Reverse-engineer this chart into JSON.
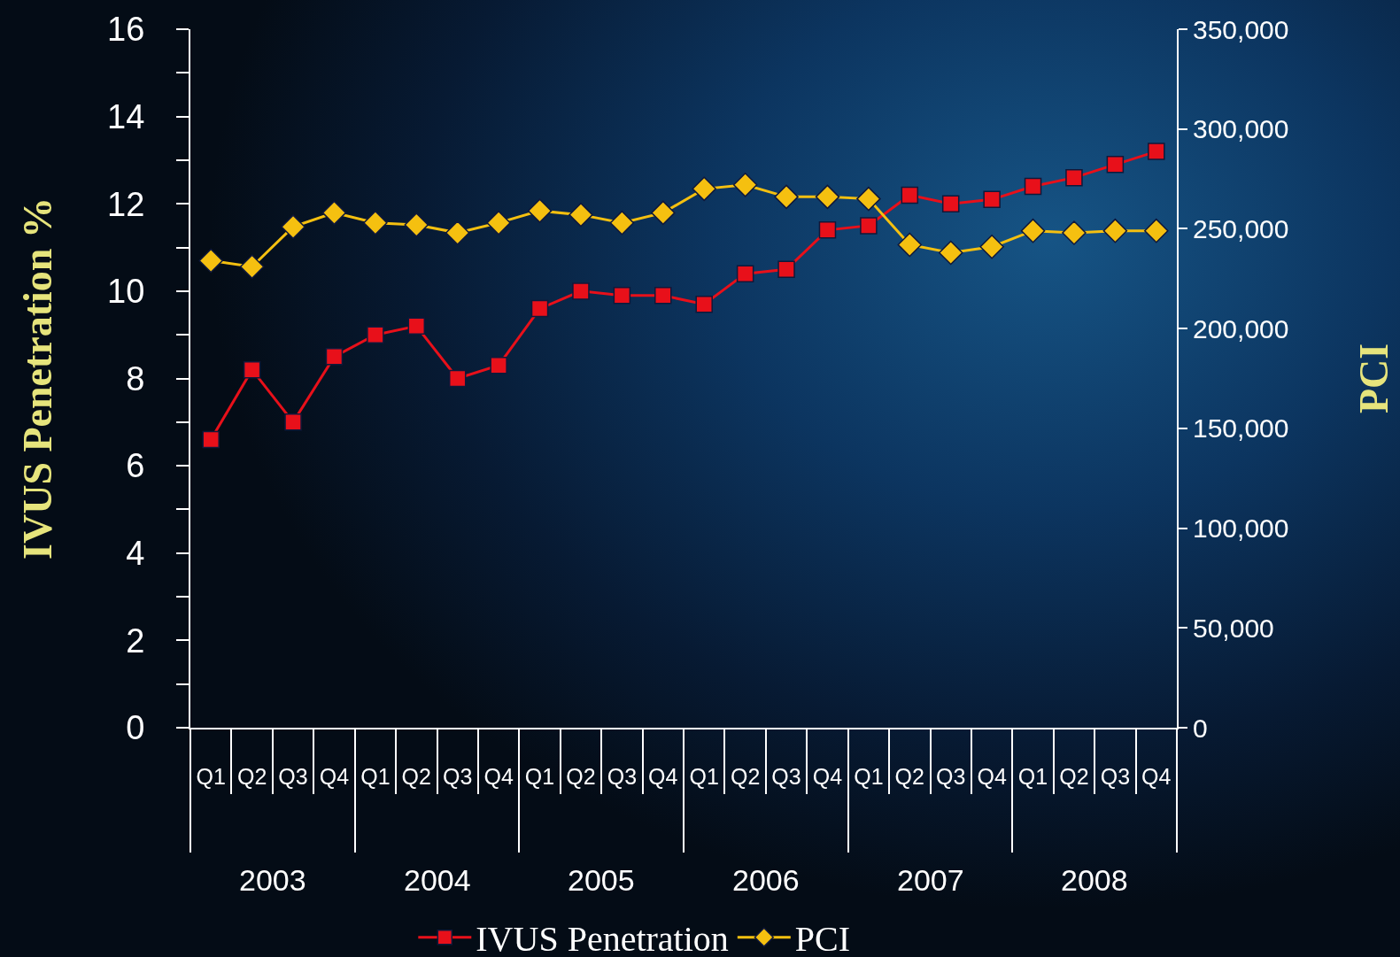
{
  "chart_data": {
    "type": "line",
    "ylabel": "IVUS Penetration %",
    "y2label": "PCI",
    "categories": [
      "Q1",
      "Q2",
      "Q3",
      "Q4",
      "Q1",
      "Q2",
      "Q3",
      "Q4",
      "Q1",
      "Q2",
      "Q3",
      "Q4",
      "Q1",
      "Q2",
      "Q3",
      "Q4",
      "Q1",
      "Q2",
      "Q3",
      "Q4",
      "Q1",
      "Q2",
      "Q3",
      "Q4"
    ],
    "annotations": [
      "2003",
      "2004",
      "2005",
      "2006",
      "2007",
      "2008"
    ],
    "series": [
      {
        "name": "IVUS Penetration",
        "color": "#e8101a",
        "marker": "square",
        "values": [
          6.6,
          8.2,
          7.0,
          8.5,
          9.0,
          9.2,
          8.0,
          8.3,
          9.6,
          10.0,
          9.9,
          9.9,
          9.7,
          10.4,
          10.5,
          11.4,
          11.5,
          12.2,
          12.0,
          12.1,
          12.4,
          12.6,
          12.9,
          13.2
        ]
      },
      {
        "name": "PCI",
        "color": "#f5c010",
        "marker": "diamond",
        "axis": "y2",
        "values": [
          234000,
          231000,
          251000,
          258000,
          253000,
          252000,
          248000,
          253000,
          259000,
          257000,
          253000,
          258000,
          270000,
          272000,
          266000,
          266000,
          265000,
          242000,
          238000,
          241000,
          249000,
          248000,
          249000,
          249000
        ]
      }
    ],
    "ylim": [
      0,
      16
    ],
    "yticks": [
      0,
      {
        "value": 1,
        "label": null
      },
      2,
      {
        "value": 3,
        "label": null
      },
      4,
      {
        "value": 5,
        "label": null
      },
      6,
      {
        "value": 7,
        "label": null
      },
      8,
      {
        "value": 9,
        "label": null
      },
      10,
      {
        "value": 11,
        "label": null
      },
      12,
      {
        "value": 13,
        "label": null
      },
      14,
      {
        "value": 15,
        "label": null
      },
      16
    ],
    "y2lim": [
      0,
      350000
    ],
    "y2ticks": [
      0,
      {
        "value": 50000,
        "label": "50,000"
      },
      {
        "value": 100000,
        "label": "100,000"
      },
      {
        "value": 150000,
        "label": "150,000"
      },
      {
        "value": 200000,
        "label": "200,000"
      },
      {
        "value": 250000,
        "label": "250,000"
      },
      {
        "value": 300000,
        "label": "300,000"
      },
      {
        "value": 350000,
        "label": "350,000"
      }
    ],
    "grid": false,
    "legend": "bottom",
    "line_style": "solid"
  }
}
